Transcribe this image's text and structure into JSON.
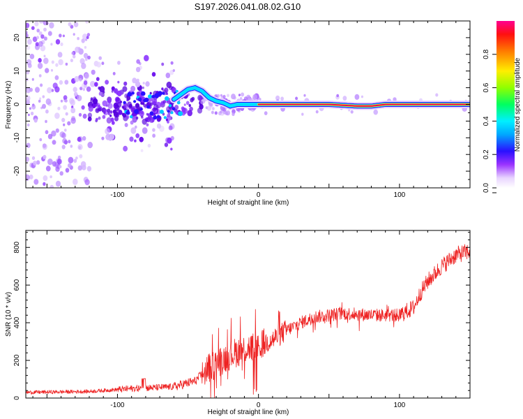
{
  "title": "S197.2026.041.08.02.G10",
  "colors": {
    "snr_line": "#ee2222",
    "scatter": "#6a0dee",
    "track_core": "#e8005a",
    "track_edge": "#00e0ff"
  },
  "chart_data": [
    {
      "type": "heatmap",
      "name": "spectrogram",
      "xlabel": "Height of straight line (km)",
      "ylabel": "Frequency (Hz)",
      "xlim": [
        -165,
        150
      ],
      "ylim": [
        -25,
        25
      ],
      "xticks": [
        -100,
        0,
        100
      ],
      "xtick_labels": [
        "-100",
        "0",
        "100"
      ],
      "yticks": [
        -20,
        -10,
        0,
        10,
        20
      ],
      "ytick_labels": [
        "-20",
        "-10",
        "0",
        "10",
        "20"
      ],
      "colorbar": {
        "label": "Normalized spectral amplitude",
        "range": [
          0,
          1
        ],
        "ticks": [
          0.0,
          0.2,
          0.4,
          0.6,
          0.8
        ],
        "tick_labels": [
          "0.0",
          "0.2",
          "0.4",
          "0.6",
          "0.8"
        ]
      },
      "track": {
        "x": [
          -60,
          -55,
          -50,
          -45,
          -40,
          -35,
          -30,
          -25,
          -20,
          -15,
          -10,
          0,
          50,
          70,
          80,
          90,
          150
        ],
        "y": [
          1.5,
          3,
          4.5,
          5,
          4,
          2,
          1,
          0.5,
          -0.5,
          0,
          0,
          0,
          0,
          -0.5,
          -0.5,
          0,
          0
        ]
      }
    },
    {
      "type": "line",
      "name": "snr",
      "xlabel": "Height of straight line (km)",
      "ylabel": "SNR (10 * v/v)",
      "xlim": [
        -165,
        150
      ],
      "ylim": [
        0,
        890
      ],
      "xticks": [
        -100,
        0,
        100
      ],
      "xtick_labels": [
        "-100",
        "0",
        "100"
      ],
      "yticks": [
        0,
        200,
        400,
        600,
        800
      ],
      "ytick_labels": [
        "0",
        "200",
        "400",
        "600",
        "800"
      ],
      "trend": {
        "x": [
          -165,
          -120,
          -90,
          -60,
          -45,
          -35,
          -20,
          -10,
          0,
          10,
          20,
          30,
          40,
          60,
          80,
          100,
          110,
          115,
          120,
          130,
          140,
          150
        ],
        "y": [
          30,
          35,
          50,
          60,
          90,
          160,
          230,
          260,
          280,
          310,
          360,
          400,
          430,
          450,
          440,
          440,
          480,
          560,
          620,
          700,
          760,
          780
        ]
      }
    }
  ]
}
